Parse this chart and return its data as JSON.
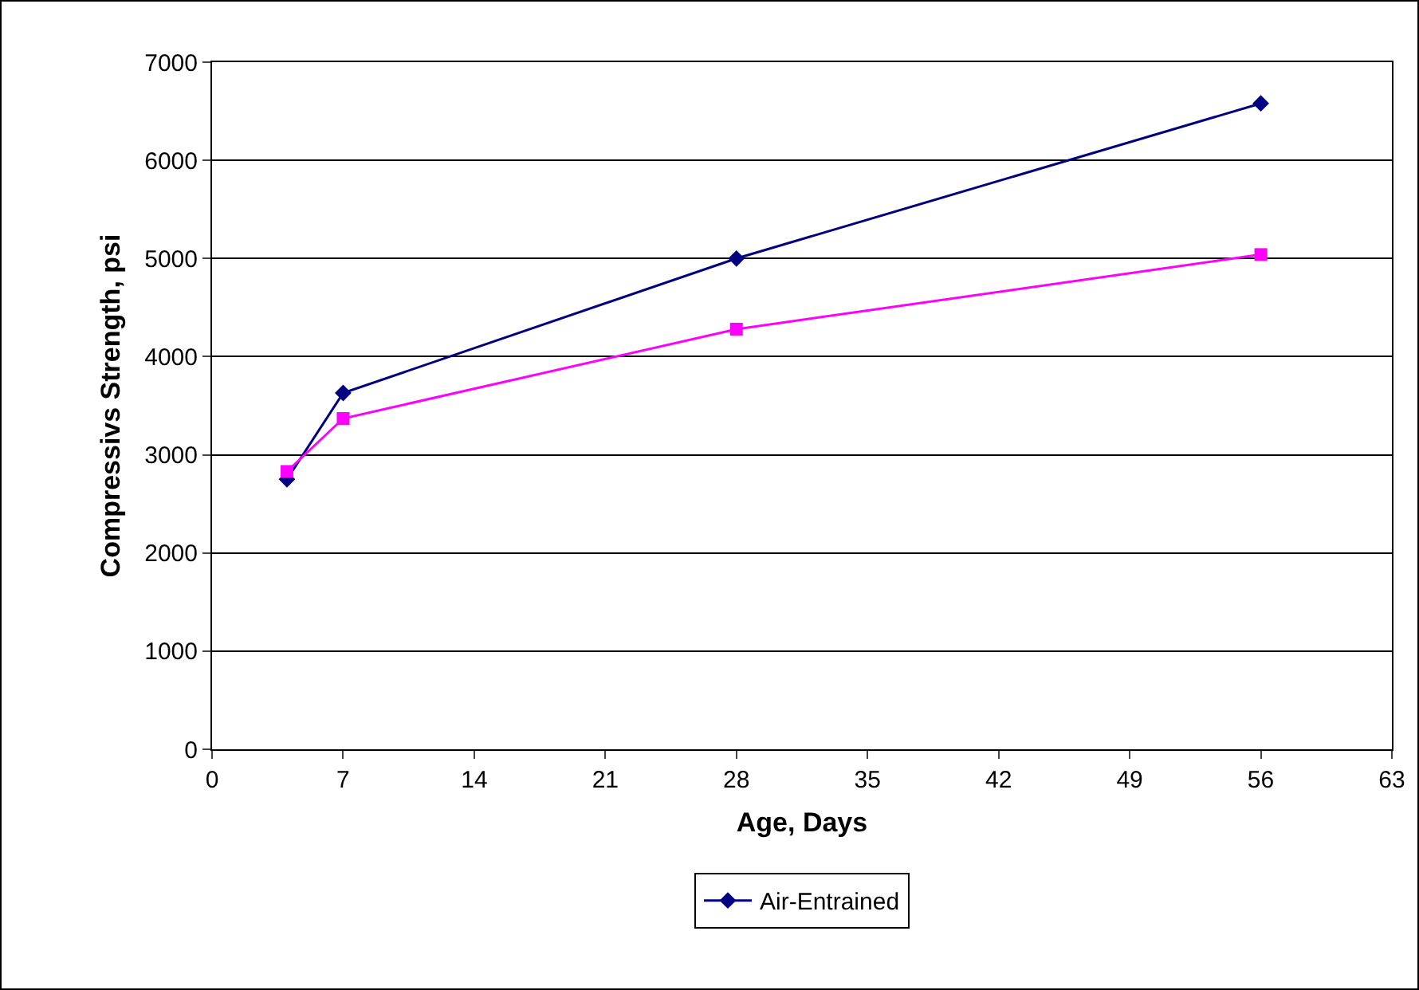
{
  "chart_data": {
    "type": "line",
    "xlabel": "Age, Days",
    "ylabel": "Compressivs Strength, psi",
    "x": [
      4,
      7,
      28,
      56
    ],
    "series": [
      {
        "name": "Air-Entrained",
        "color": "#000080",
        "marker": "diamond",
        "values": [
          2750,
          3630,
          5000,
          6580
        ]
      },
      {
        "color": "#ff00ff",
        "marker": "square",
        "values": [
          2830,
          3370,
          4280,
          5040
        ]
      }
    ],
    "xlim": [
      0,
      63
    ],
    "xticks": [
      0,
      7,
      14,
      21,
      28,
      35,
      42,
      49,
      56,
      63
    ],
    "ylim": [
      0,
      7000
    ],
    "yticks": [
      0,
      1000,
      2000,
      3000,
      4000,
      5000,
      6000,
      7000
    ],
    "grid": "y",
    "legend": "bottom",
    "line_style": "solid"
  }
}
